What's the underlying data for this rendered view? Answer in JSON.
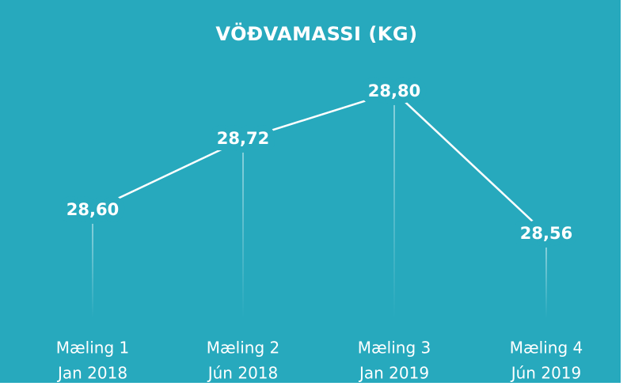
{
  "chart_data": {
    "type": "line",
    "title": "VÖÐVAMASSI  (KG)",
    "categories": [
      [
        "Mæling 1",
        "Jan 2018"
      ],
      [
        "Mæling 2",
        "Jún 2018"
      ],
      [
        "Mæling 3",
        "Jan 2019"
      ],
      [
        "Mæling 4",
        "Jún 2019"
      ]
    ],
    "values": [
      28.6,
      28.72,
      28.8,
      28.56
    ],
    "value_labels": [
      "28,60",
      "28,72",
      "28,80",
      "28,56"
    ],
    "color": "#ffffff",
    "ylim": [
      28.4,
      28.9
    ]
  }
}
